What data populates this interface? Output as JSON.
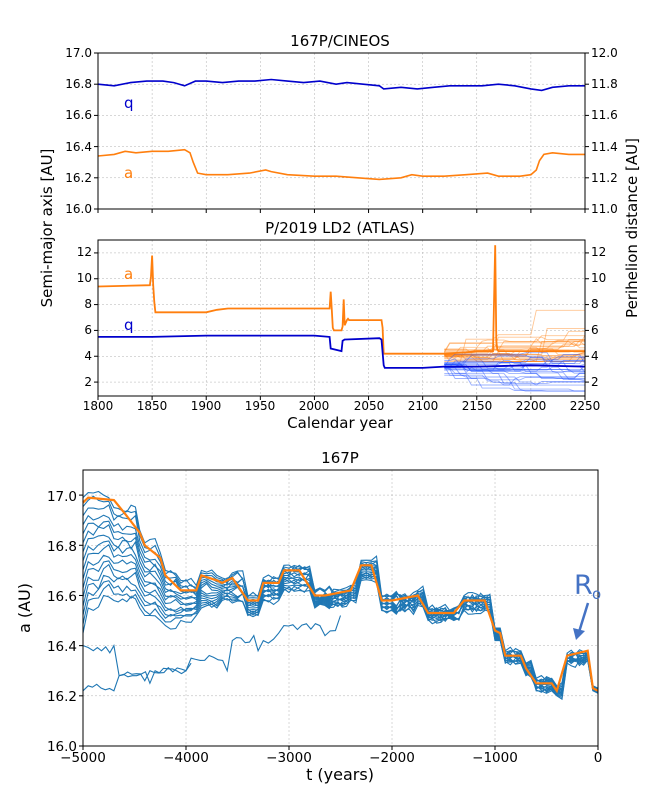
{
  "colors": {
    "orange": "#ff7f0e",
    "blue": "#0000cc",
    "cblue": "#1f77b4",
    "annot": "#4472c4"
  },
  "chart_data": [
    {
      "type": "line",
      "title": "167P/CINEOS",
      "xlabel": "",
      "ylabel": "Semi-major axis [AU]",
      "ylabel_right": "Perihelion distance [AU]",
      "xlim": [
        1800,
        2250
      ],
      "ylim": [
        16.0,
        17.0
      ],
      "ylim_right": [
        11.0,
        12.0
      ],
      "yticks": [
        "16.0",
        "16.2",
        "16.4",
        "16.6",
        "16.8",
        "17.0"
      ],
      "yticks_right": [
        "11.0",
        "11.2",
        "11.4",
        "11.6",
        "11.8",
        "12.0"
      ],
      "grid": true,
      "series": [
        {
          "name": "q",
          "axis": "right",
          "color": "#0000cc",
          "x": [
            1800,
            1815,
            1830,
            1845,
            1860,
            1870,
            1880,
            1890,
            1900,
            1915,
            1930,
            1945,
            1960,
            1975,
            1990,
            2005,
            2020,
            2030,
            2045,
            2060,
            2064,
            2080,
            2095,
            2110,
            2125,
            2140,
            2155,
            2170,
            2185,
            2200,
            2210,
            2220,
            2235,
            2250
          ],
          "y": [
            11.8,
            11.79,
            11.81,
            11.82,
            11.82,
            11.81,
            11.79,
            11.82,
            11.82,
            11.81,
            11.82,
            11.82,
            11.83,
            11.82,
            11.81,
            11.82,
            11.8,
            11.81,
            11.8,
            11.79,
            11.77,
            11.78,
            11.77,
            11.78,
            11.79,
            11.79,
            11.79,
            11.8,
            11.79,
            11.77,
            11.76,
            11.78,
            11.79,
            11.79
          ]
        },
        {
          "name": "a",
          "axis": "left",
          "color": "#ff7f0e",
          "x": [
            1800,
            1815,
            1825,
            1835,
            1850,
            1865,
            1880,
            1885,
            1888,
            1892,
            1900,
            1920,
            1940,
            1955,
            1960,
            1975,
            2000,
            2020,
            2040,
            2060,
            2080,
            2090,
            2100,
            2120,
            2140,
            2160,
            2170,
            2190,
            2200,
            2205,
            2208,
            2212,
            2220,
            2235,
            2250
          ],
          "y": [
            16.34,
            16.35,
            16.37,
            16.36,
            16.37,
            16.37,
            16.38,
            16.36,
            16.3,
            16.23,
            16.22,
            16.22,
            16.23,
            16.25,
            16.24,
            16.22,
            16.21,
            16.21,
            16.2,
            16.19,
            16.2,
            16.22,
            16.21,
            16.21,
            16.22,
            16.23,
            16.21,
            16.21,
            16.22,
            16.25,
            16.31,
            16.35,
            16.36,
            16.35,
            16.35
          ]
        }
      ],
      "annotations": [
        {
          "text": "q",
          "color": "#0000cc"
        },
        {
          "text": "a",
          "color": "#ff7f0e"
        }
      ]
    },
    {
      "type": "line",
      "title": "P/2019 LD2 (ATLAS)",
      "xlabel": "Calendar year",
      "ylabel": "Semi-major axis [AU]",
      "ylabel_right": "Perihelion distance [AU]",
      "xlim": [
        1800,
        2250
      ],
      "ylim": [
        1,
        13
      ],
      "xticks": [
        "1800",
        "1850",
        "1900",
        "1950",
        "2000",
        "2050",
        "2100",
        "2150",
        "2200",
        "2250"
      ],
      "yticks": [
        "2",
        "4",
        "6",
        "8",
        "10",
        "12"
      ],
      "yticks_right": [
        "2",
        "4",
        "6",
        "8",
        "10",
        "12"
      ],
      "grid": true,
      "series": [
        {
          "name": "a",
          "color": "#ff7f0e",
          "x": [
            1800,
            1848,
            1849,
            1850,
            1851,
            1852,
            1853,
            1860,
            1900,
            1910,
            1920,
            1950,
            2000,
            2014,
            2015,
            2016,
            2017,
            2018,
            2025,
            2026,
            2027,
            2028,
            2030,
            2031,
            2032,
            2062,
            2063,
            2064,
            2070,
            2120,
            2140,
            2150,
            2165,
            2167,
            2168,
            2169,
            2170,
            2200,
            2250
          ],
          "y": [
            9.4,
            9.5,
            10.2,
            11.8,
            9.5,
            8.2,
            7.4,
            7.4,
            7.4,
            7.6,
            7.7,
            7.7,
            7.7,
            7.7,
            9.0,
            7.6,
            6.2,
            6.0,
            6.0,
            6.3,
            8.4,
            6.4,
            6.8,
            6.9,
            6.8,
            6.8,
            6.2,
            4.2,
            4.2,
            4.2,
            4.3,
            4.4,
            4.4,
            12.6,
            5.2,
            4.5,
            4.4,
            4.4,
            4.4
          ]
        },
        {
          "name": "q",
          "color": "#0000cc",
          "x": [
            1800,
            1850,
            1900,
            1950,
            2000,
            2014,
            2015,
            2025,
            2026,
            2028,
            2029,
            2060,
            2062,
            2064,
            2065,
            2100,
            2120,
            2150,
            2200,
            2250
          ],
          "y": [
            5.5,
            5.5,
            5.6,
            5.6,
            5.6,
            5.5,
            4.6,
            4.4,
            5.2,
            5.3,
            5.3,
            5.4,
            5.3,
            3.3,
            3.1,
            3.1,
            3.2,
            3.2,
            3.3,
            3.2
          ]
        }
      ],
      "clones": "semi-transparent clone trajectories after year 2120 (a and q)",
      "annotations": [
        {
          "text": "a",
          "color": "#ff7f0e"
        },
        {
          "text": "q",
          "color": "#0000cc"
        }
      ]
    },
    {
      "type": "line",
      "title": "167P",
      "xlabel": "t (years)",
      "ylabel": "a (AU)",
      "xlim": [
        -5000,
        0
      ],
      "ylim": [
        16.0,
        17.1
      ],
      "xticks": [
        "−5000",
        "−4000",
        "−3000",
        "−2000",
        "−1000",
        "0"
      ],
      "yticks": [
        "16.0",
        "16.2",
        "16.4",
        "16.6",
        "16.8",
        "17.0"
      ],
      "grid": true,
      "series": [
        {
          "name": "nominal",
          "color": "#ff7f0e",
          "x": [
            -5000,
            -4950,
            -4700,
            -4600,
            -4450,
            -4400,
            -4250,
            -4200,
            -4050,
            -3900,
            -3850,
            -3700,
            -3650,
            -3550,
            -3400,
            -3300,
            -3250,
            -3100,
            -3050,
            -2900,
            -2750,
            -2650,
            -2400,
            -2300,
            -2200,
            -2100,
            -2000,
            -1750,
            -1650,
            -1400,
            -1300,
            -1100,
            -1000,
            -950,
            -900,
            -750,
            -700,
            -600,
            -450,
            -400,
            -300,
            -100,
            -50,
            0
          ],
          "y": [
            16.97,
            16.99,
            16.98,
            16.93,
            16.85,
            16.8,
            16.75,
            16.68,
            16.62,
            16.62,
            16.68,
            16.66,
            16.65,
            16.67,
            16.58,
            16.58,
            16.65,
            16.65,
            16.7,
            16.7,
            16.6,
            16.6,
            16.62,
            16.72,
            16.72,
            16.58,
            16.58,
            16.6,
            16.53,
            16.53,
            16.58,
            16.58,
            16.46,
            16.45,
            16.36,
            16.36,
            16.31,
            16.25,
            16.25,
            16.22,
            16.36,
            16.38,
            16.23,
            16.22
          ]
        }
      ],
      "clone_bands": [
        {
          "name": "clones-upper",
          "color": "#1f77b4",
          "x": [
            -5000,
            -4950,
            -4800,
            -4700,
            -4450,
            -4400,
            -4250,
            -4200,
            -4050,
            -3900,
            -3850,
            -3700,
            -3650,
            -3550,
            -3400,
            -3300,
            -3250,
            -3100,
            -3050,
            -2900,
            -2750,
            -2650,
            -2400,
            -2300,
            -2200,
            -2100,
            -2000,
            -1750,
            -1650,
            -1400,
            -1300,
            -1100,
            -1000,
            -950,
            -900,
            -750,
            -700,
            -600,
            -450,
            -400,
            -300,
            -100,
            -50,
            0
          ],
          "y": [
            16.99,
            17.01,
            17.0,
            16.95,
            16.86,
            16.81,
            16.77,
            16.7,
            16.66,
            16.64,
            16.7,
            16.68,
            16.67,
            16.69,
            16.6,
            16.6,
            16.67,
            16.67,
            16.72,
            16.72,
            16.62,
            16.62,
            16.64,
            16.74,
            16.74,
            16.6,
            16.6,
            16.62,
            16.55,
            16.55,
            16.6,
            16.6,
            16.47,
            16.47,
            16.38,
            16.38,
            16.33,
            16.27,
            16.27,
            16.24,
            16.37,
            16.38,
            16.24,
            16.23
          ]
        },
        {
          "name": "clones-lower",
          "color": "#1f77b4",
          "x": [
            -5000,
            -4950,
            -4800,
            -4600,
            -4450,
            -4400,
            -4250,
            -4200,
            -4050,
            -3900,
            -3850,
            -3700,
            -3650,
            -3550,
            -3400,
            -3300,
            -3250,
            -3100,
            -3050,
            -2900,
            -2750,
            -2650,
            -2400,
            -2300,
            -2200,
            -2100,
            -2000,
            -1750,
            -1650,
            -1400,
            -1300,
            -1100,
            -1000,
            -950,
            -900,
            -750,
            -700,
            -600,
            -450,
            -400,
            -300,
            -100,
            -50,
            0
          ],
          "y": [
            16.45,
            16.55,
            16.6,
            16.58,
            16.55,
            16.52,
            16.5,
            16.48,
            16.5,
            16.52,
            16.55,
            16.55,
            16.58,
            16.57,
            16.52,
            16.52,
            16.58,
            16.58,
            16.62,
            16.62,
            16.55,
            16.56,
            16.58,
            16.66,
            16.66,
            16.54,
            16.54,
            16.56,
            16.5,
            16.5,
            16.54,
            16.54,
            16.42,
            16.42,
            16.33,
            16.33,
            16.28,
            16.22,
            16.22,
            16.2,
            16.33,
            16.34,
            16.22,
            16.21
          ]
        },
        {
          "name": "clone-low-1",
          "color": "#1f77b4",
          "x": [
            -5000,
            -4900,
            -4700,
            -4650,
            -4400,
            -4350,
            -4000,
            -3950,
            -3600,
            -3550,
            -3300,
            -3250,
            -3100,
            -3050,
            -2700,
            -2650,
            -2550,
            -2500
          ],
          "y": [
            16.4,
            16.38,
            16.4,
            16.28,
            16.26,
            16.3,
            16.3,
            16.35,
            16.3,
            16.42,
            16.38,
            16.42,
            16.45,
            16.48,
            16.48,
            16.44,
            16.46,
            16.52
          ]
        },
        {
          "name": "clone-low-2",
          "color": "#1f77b4",
          "x": [
            -5000,
            -4950,
            -4700,
            -4650,
            -4350,
            -4300,
            -4000,
            -3950
          ],
          "y": [
            16.22,
            16.24,
            16.22,
            16.28,
            16.25,
            16.3,
            16.3,
            16.33
          ]
        }
      ],
      "annotations": [
        {
          "text": "R",
          "subscript": "o",
          "color": "#4472c4"
        }
      ]
    }
  ]
}
